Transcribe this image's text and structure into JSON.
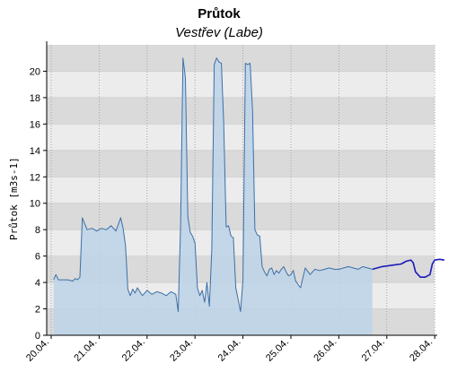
{
  "chart_data": {
    "type": "area",
    "title": "Průtok",
    "subtitle": "Vestřev (Labe)",
    "ylabel": "Průtok [m3s-1]",
    "xlabel": "",
    "ylim": [
      0,
      22
    ],
    "xlim": [
      0,
      8.2
    ],
    "yticks": [
      0,
      2,
      4,
      6,
      8,
      10,
      12,
      14,
      16,
      18,
      20
    ],
    "xticks": [
      {
        "x": 0,
        "label": "20.04."
      },
      {
        "x": 1,
        "label": "21.04."
      },
      {
        "x": 2,
        "label": "22.04."
      },
      {
        "x": 3,
        "label": "23.04."
      },
      {
        "x": 4,
        "label": "24.04."
      },
      {
        "x": 5,
        "label": "25.04."
      },
      {
        "x": 6,
        "label": "26.04."
      },
      {
        "x": 7,
        "label": "27.04."
      },
      {
        "x": 8,
        "label": "28.04."
      }
    ],
    "grid": true,
    "series": [
      {
        "kind": "observed",
        "color": "#3d6fa6",
        "fill": "#bcd3e8",
        "x": [
          0.05,
          0.1,
          0.15,
          0.25,
          0.35,
          0.45,
          0.5,
          0.55,
          0.6,
          0.65,
          0.75,
          0.85,
          0.95,
          1.05,
          1.15,
          1.25,
          1.35,
          1.45,
          1.5,
          1.55,
          1.6,
          1.65,
          1.7,
          1.75,
          1.8,
          1.85,
          1.9,
          2.0,
          2.1,
          2.2,
          2.3,
          2.4,
          2.5,
          2.6,
          2.65,
          2.7,
          2.75,
          2.8,
          2.85,
          2.9,
          2.95,
          3.0,
          3.05,
          3.1,
          3.15,
          3.2,
          3.25,
          3.3,
          3.35,
          3.4,
          3.45,
          3.5,
          3.55,
          3.6,
          3.65,
          3.7,
          3.75,
          3.8,
          3.85,
          3.9,
          3.95,
          4.0,
          4.05,
          4.1,
          4.15,
          4.2,
          4.25,
          4.3,
          4.35,
          4.4,
          4.45,
          4.5,
          4.55,
          4.6,
          4.65,
          4.7,
          4.75,
          4.8,
          4.85,
          4.9,
          4.95,
          5.0,
          5.05,
          5.1,
          5.2,
          5.3,
          5.4,
          5.5,
          5.6,
          5.7,
          5.8,
          5.9,
          6.0,
          6.1,
          6.2,
          6.3,
          6.4,
          6.5,
          6.6,
          6.7
        ],
        "y": [
          4.2,
          4.6,
          4.2,
          4.2,
          4.2,
          4.1,
          4.3,
          4.2,
          4.4,
          8.9,
          8.0,
          8.1,
          7.9,
          8.1,
          8.0,
          8.3,
          7.9,
          8.9,
          8.1,
          6.8,
          3.5,
          3.0,
          3.5,
          3.2,
          3.6,
          3.3,
          3.0,
          3.4,
          3.1,
          3.3,
          3.2,
          3.0,
          3.3,
          3.1,
          1.8,
          8.5,
          21.0,
          19.5,
          9.0,
          7.8,
          7.5,
          7.0,
          3.6,
          3.0,
          3.4,
          2.5,
          4.0,
          2.2,
          6.5,
          20.5,
          21.0,
          20.7,
          20.6,
          16.0,
          8.2,
          8.3,
          7.5,
          7.4,
          3.6,
          2.7,
          1.8,
          4.2,
          20.6,
          20.5,
          20.6,
          17.0,
          8.0,
          7.6,
          7.5,
          5.2,
          4.8,
          4.5,
          5.0,
          5.1,
          4.6,
          4.9,
          4.7,
          5.0,
          5.2,
          4.8,
          4.5,
          4.6,
          4.9,
          4.1,
          3.6,
          5.1,
          4.6,
          5.0,
          4.9,
          5.0,
          5.1,
          5.0,
          5.0,
          5.1,
          5.2,
          5.1,
          5.0,
          5.2,
          5.1,
          5.0
        ]
      },
      {
        "kind": "forecast",
        "color": "#1a1ab8",
        "x": [
          6.7,
          6.9,
          7.1,
          7.3,
          7.4,
          7.5,
          7.55,
          7.6,
          7.7,
          7.8,
          7.85,
          7.9,
          7.95,
          8.0,
          8.1,
          8.2
        ],
        "y": [
          5.0,
          5.2,
          5.3,
          5.4,
          5.6,
          5.7,
          5.5,
          4.8,
          4.4,
          4.4,
          4.5,
          4.6,
          5.4,
          5.7,
          5.75,
          5.7
        ]
      }
    ]
  }
}
